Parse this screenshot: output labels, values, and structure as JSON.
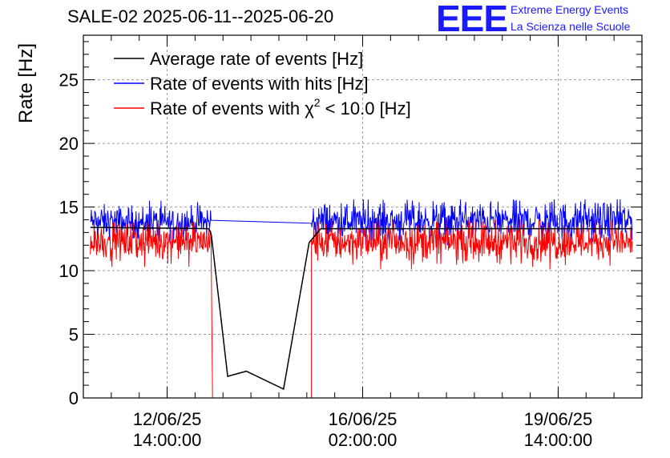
{
  "chart_data": {
    "type": "line",
    "title": "SALE-02 2025-06-11--2025-06-20",
    "ylabel": "Rate [Hz]",
    "xlabel": "",
    "x_range": [
      "2025-06-11 02:00",
      "2025-06-21 02:00"
    ],
    "ylim": [
      0,
      28.5
    ],
    "yticks": [
      0,
      5,
      10,
      15,
      20,
      25
    ],
    "xticks": [
      {
        "x": "2025-06-12 14:00",
        "date": "12/06/25",
        "time": "14:00:00"
      },
      {
        "x": "2025-06-16 02:00",
        "date": "16/06/25",
        "time": "02:00:00"
      },
      {
        "x": "2025-06-19 14:00",
        "date": "19/06/25",
        "time": "14:00:00"
      }
    ],
    "grid": true,
    "legend_position": "top-left",
    "series": [
      {
        "name": "Average rate of events [Hz]",
        "color": "#000000",
        "points": [
          [
            "2025-06-11 05:00",
            13.4
          ],
          [
            "2025-06-13 08:00",
            13.3
          ],
          [
            "2025-06-13 09:00",
            12.8
          ],
          [
            "2025-06-13 16:00",
            1.7
          ],
          [
            "2025-06-14 00:00",
            2.1
          ],
          [
            "2025-06-14 16:00",
            0.7
          ],
          [
            "2025-06-15 03:00",
            12.2
          ],
          [
            "2025-06-15 08:00",
            13.3
          ],
          [
            "2025-06-20 22:00",
            13.3
          ]
        ]
      },
      {
        "name": "Rate of events with hits [Hz]",
        "color": "#0000ff",
        "segments": [
          {
            "from": "2025-06-11 05:00",
            "to": "2025-06-13 09:00",
            "min": 12.3,
            "max": 15.5,
            "mean": 13.8
          },
          {
            "from": "2025-06-15 04:00",
            "to": "2025-06-20 22:00",
            "min": 12.0,
            "max": 15.6,
            "mean": 13.9
          }
        ]
      },
      {
        "name": "Rate of events with χ2 < 10.0 [Hz]",
        "color": "#ff0000",
        "segments": [
          {
            "from": "2025-06-11 05:00",
            "to": "2025-06-13 09:00",
            "min": 10.3,
            "max": 13.8,
            "mean": 12.3
          },
          {
            "from": "2025-06-13 09:30",
            "to": "2025-06-15 04:00",
            "min": 0,
            "max": 0,
            "mean": 0
          },
          {
            "from": "2025-06-15 04:00",
            "to": "2025-06-20 22:00",
            "min": 10.1,
            "max": 14.0,
            "mean": 12.3
          }
        ]
      }
    ],
    "legend": [
      {
        "label": "Average rate of events [Hz]",
        "color": "#000000"
      },
      {
        "label": "Rate of events with hits [Hz]",
        "color": "#0000ff"
      },
      {
        "label_main": "Rate of events with χ",
        "label_sup": "2",
        "label_tail": " < 10.0 [Hz]",
        "color": "#ff0000"
      }
    ]
  },
  "branding": {
    "logo_text": "EEE",
    "line1": "Extreme Energy Events",
    "line2": "La Scienza nelle Scuole",
    "color": "#1a1aff"
  }
}
